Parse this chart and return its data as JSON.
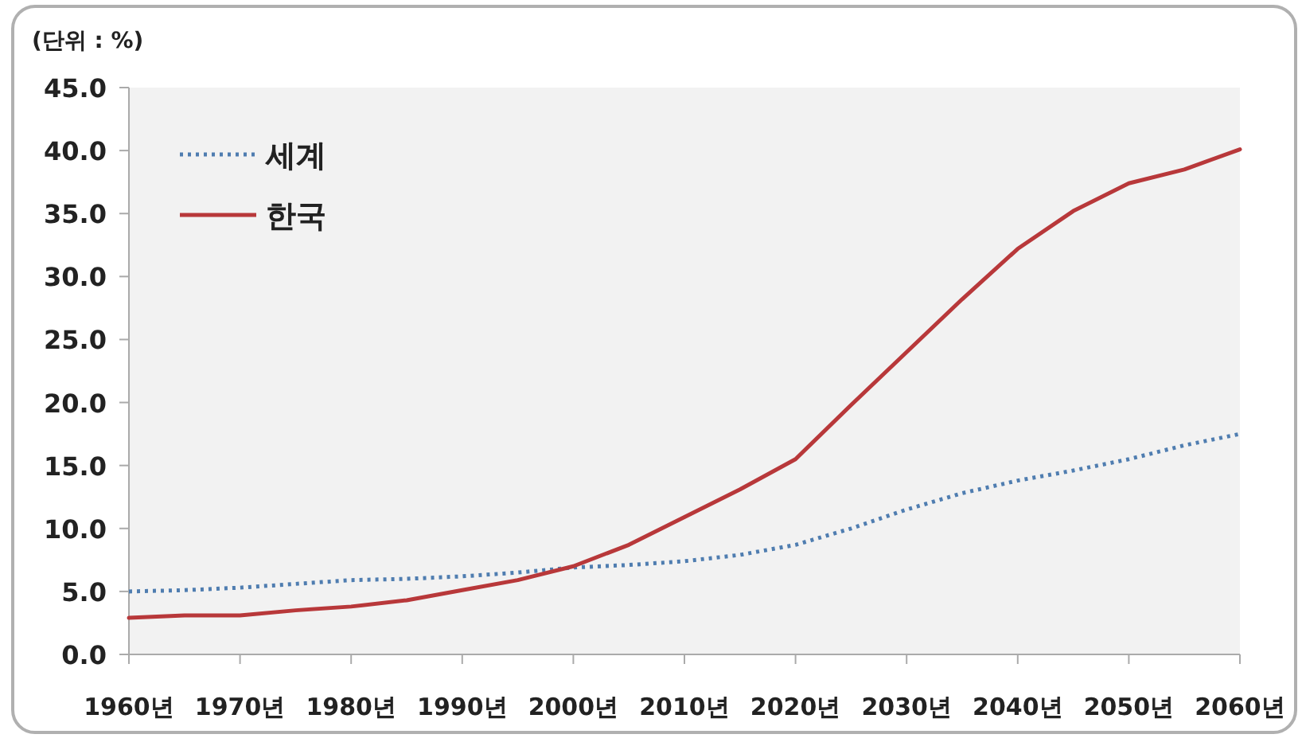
{
  "chart_data": {
    "type": "line",
    "title": "(단위 : %)",
    "x": [
      1960,
      1965,
      1970,
      1975,
      1980,
      1985,
      1990,
      1995,
      2000,
      2005,
      2010,
      2015,
      2020,
      2025,
      2030,
      2035,
      2040,
      2045,
      2050,
      2055,
      2060
    ],
    "series": [
      {
        "name": "세계",
        "color": "#4f7db0",
        "line_style": "dotted",
        "values": [
          5.0,
          5.1,
          5.3,
          5.6,
          5.9,
          6.0,
          6.2,
          6.5,
          6.9,
          7.1,
          7.4,
          7.9,
          8.7,
          10.0,
          11.5,
          12.8,
          13.8,
          14.6,
          15.5,
          16.6,
          17.5
        ]
      },
      {
        "name": "한국",
        "color": "#b8383a",
        "line_style": "solid",
        "values": [
          2.9,
          3.1,
          3.1,
          3.5,
          3.8,
          4.3,
          5.1,
          5.9,
          7.0,
          8.7,
          10.9,
          13.1,
          15.5,
          19.8,
          24.0,
          28.2,
          32.2,
          35.2,
          37.4,
          38.5,
          40.1
        ]
      }
    ],
    "xlim": [
      1960,
      2060
    ],
    "xticks": [
      {
        "value": 1960,
        "label": "1960년"
      },
      {
        "value": 1970,
        "label": "1970년"
      },
      {
        "value": 1980,
        "label": "1980년"
      },
      {
        "value": 1990,
        "label": "1990년"
      },
      {
        "value": 2000,
        "label": "2000년"
      },
      {
        "value": 2010,
        "label": "2010년"
      },
      {
        "value": 2020,
        "label": "2020년"
      },
      {
        "value": 2030,
        "label": "2030년"
      },
      {
        "value": 2040,
        "label": "2040년"
      },
      {
        "value": 2050,
        "label": "2050년"
      },
      {
        "value": 2060,
        "label": "2060년"
      }
    ],
    "ylim": [
      0,
      45
    ],
    "yticks": [
      {
        "value": 0,
        "label": "0.0"
      },
      {
        "value": 5,
        "label": "5.0"
      },
      {
        "value": 10,
        "label": "10.0"
      },
      {
        "value": 15,
        "label": "15.0"
      },
      {
        "value": 20,
        "label": "20.0"
      },
      {
        "value": 25,
        "label": "25.0"
      },
      {
        "value": 30,
        "label": "30.0"
      },
      {
        "value": 35,
        "label": "35.0"
      },
      {
        "value": 40,
        "label": "40.0"
      },
      {
        "value": 45,
        "label": "45.0"
      }
    ],
    "grid": false,
    "legend": "top left"
  }
}
